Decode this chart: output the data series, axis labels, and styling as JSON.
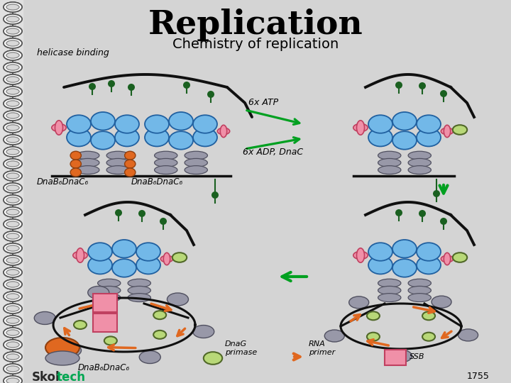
{
  "title": "Replication",
  "subtitle": "Chemistry of replication",
  "bg_color": "#d4d4d4",
  "title_fontsize": 34,
  "subtitle_fontsize": 14,
  "label_helicase": "helicase binding",
  "label_dnab1": "DnaB₆DnaC₆",
  "label_dnab2": "DnaB₆DnaC₆",
  "label_dnab3": "DnaB₆DnaC₆",
  "label_6atp": "6x ATP",
  "label_6adp": "6x ADP, DnaC",
  "label_dnag": "DnaG\nprimase",
  "label_rna": "RNA\nprimer",
  "label_ssb": "SSB",
  "year": "1755",
  "blue_color": "#72b8e8",
  "blue_edge": "#2060a0",
  "gray_color": "#9898a8",
  "gray_edge": "#505060",
  "orange_color": "#e06820",
  "orange_edge": "#904010",
  "pink_color": "#f090a8",
  "pink_edge": "#c04060",
  "green_dark": "#1a6020",
  "green_light": "#b8d878",
  "green_light_edge": "#506828",
  "arrow_green": "#00a020",
  "dna_black": "#101010",
  "skoltech_skol": "#282828",
  "skoltech_tech": "#00a651"
}
